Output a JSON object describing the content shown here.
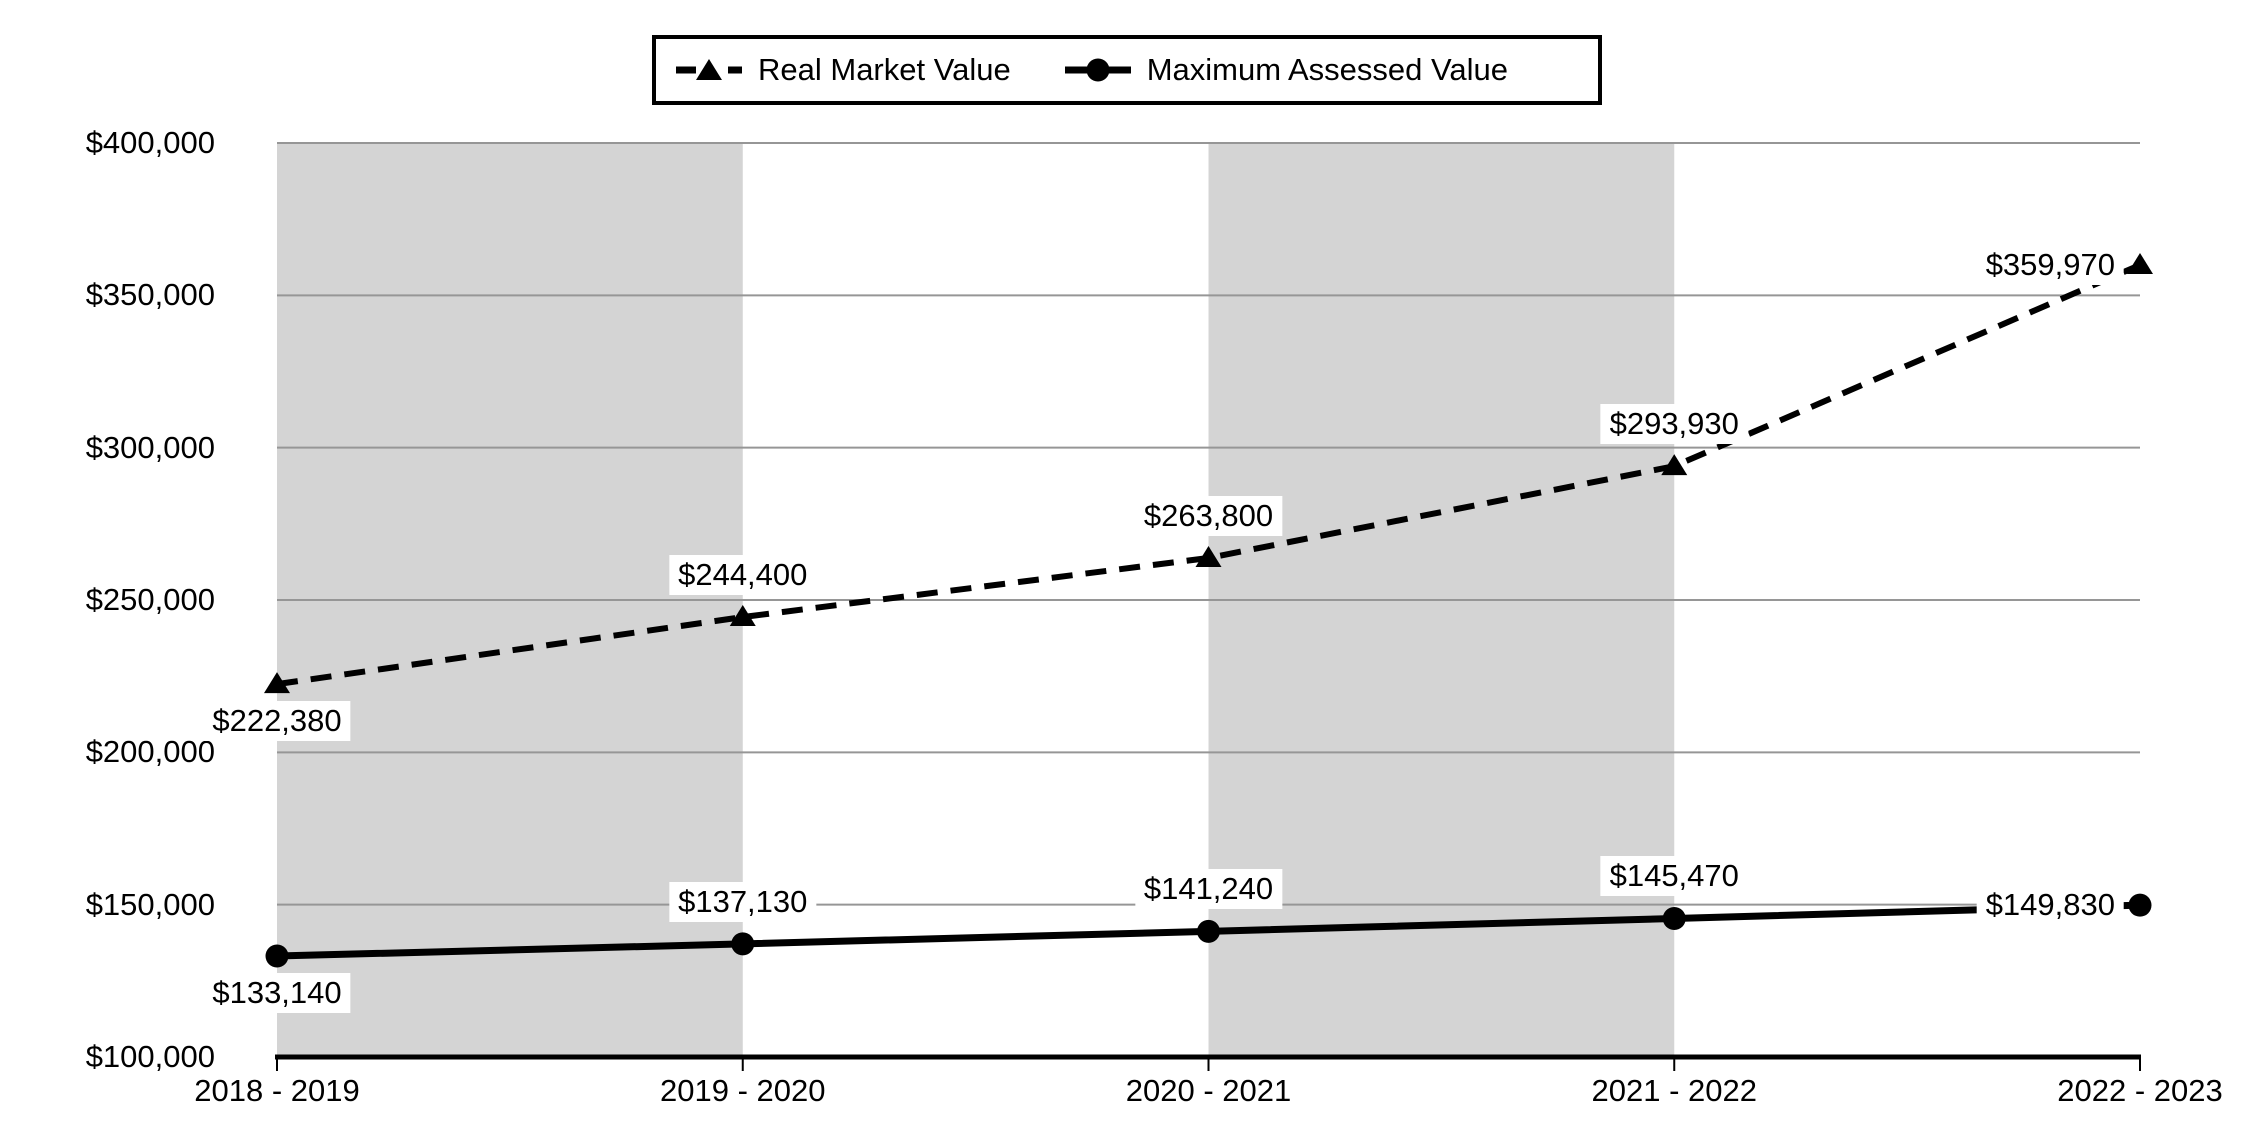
{
  "chart_data": {
    "type": "line",
    "title": "",
    "categories": [
      "2018 - 2019",
      "2019 - 2020",
      "2020 - 2021",
      "2021 - 2022",
      "2022 - 2023"
    ],
    "series": [
      {
        "name": "Real Market Value",
        "line_style": "dashed",
        "marker": "triangle",
        "values": [
          222380,
          244400,
          263800,
          293930,
          359970
        ],
        "labels": [
          "$222,380",
          "$244,400",
          "$263,800",
          "$293,930",
          "$359,970"
        ],
        "label_placements": [
          "below",
          "above",
          "above",
          "above",
          "left"
        ]
      },
      {
        "name": "Maximum Assessed Value",
        "line_style": "solid",
        "marker": "circle",
        "values": [
          133140,
          137130,
          141240,
          145470,
          149830
        ],
        "labels": [
          "$133,140",
          "$137,130",
          "$141,240",
          "$145,470",
          "$149,830"
        ],
        "label_placements": [
          "below",
          "above",
          "above",
          "above",
          "left"
        ]
      }
    ],
    "ylim": [
      100000,
      400000
    ],
    "y_ticks": [
      {
        "value": 400000,
        "label": "$400,000"
      },
      {
        "value": 350000,
        "label": "$350,000"
      },
      {
        "value": 300000,
        "label": "$300,000"
      },
      {
        "value": 250000,
        "label": "$250,000"
      },
      {
        "value": 200000,
        "label": "$200,000"
      },
      {
        "value": 150000,
        "label": "$150,000"
      },
      {
        "value": 100000,
        "label": "$100,000"
      }
    ],
    "grid": true,
    "legend_position": "top",
    "shaded_intervals": [
      0,
      2
    ],
    "colors": {
      "series": "#000000",
      "band_fill": "#d4d4d4",
      "gridline": "#969696",
      "axis": "#000000",
      "label_box": "#ffffff"
    }
  }
}
